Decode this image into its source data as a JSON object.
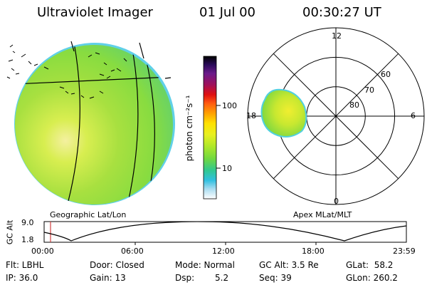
{
  "header": {
    "instrument": "Ultraviolet Imager",
    "date": "01 Jul 00",
    "time": "00:30:27 UT"
  },
  "left_panel": {
    "caption": "Geographic Lat/Lon"
  },
  "colorbar": {
    "unit_label": "photon cm⁻²s⁻¹",
    "ticks": [
      "100",
      "10"
    ],
    "colors": [
      "#000000",
      "#2a0a5a",
      "#5a1a8a",
      "#8a1a6a",
      "#b0102a",
      "#e01010",
      "#ff5010",
      "#ff9a00",
      "#ffd000",
      "#f0f020",
      "#c8e820",
      "#90e030",
      "#50d070",
      "#20c8b8",
      "#40b8f0",
      "#a0d8f0",
      "#ffffff"
    ]
  },
  "right_panel": {
    "caption": "Apex MLat/MLT",
    "mlat_labels": [
      "60",
      "70",
      "80"
    ],
    "mlt_labels": {
      "top": "12",
      "left": "18",
      "right": "6",
      "bottom": "0"
    }
  },
  "timeline": {
    "ylabel": "GC Alt",
    "y_ticks": [
      "9.0",
      "1.8"
    ],
    "x_ticks": [
      "00:00",
      "06:00",
      "12:00",
      "18:00",
      "23:59"
    ]
  },
  "info": {
    "flt": "Flt: LBHL",
    "ip": "IP: 36.0",
    "door": "Door: Closed",
    "gain": "Gain: 13",
    "mode": "Mode: Normal",
    "dsp_label": "Dsp:",
    "dsp_value": "5.2",
    "gcalt": "GC Alt: 3.5 Re",
    "seq": "Seq: 39",
    "glat": "GLat:  58.2",
    "glon": "GLon: 260.2"
  }
}
